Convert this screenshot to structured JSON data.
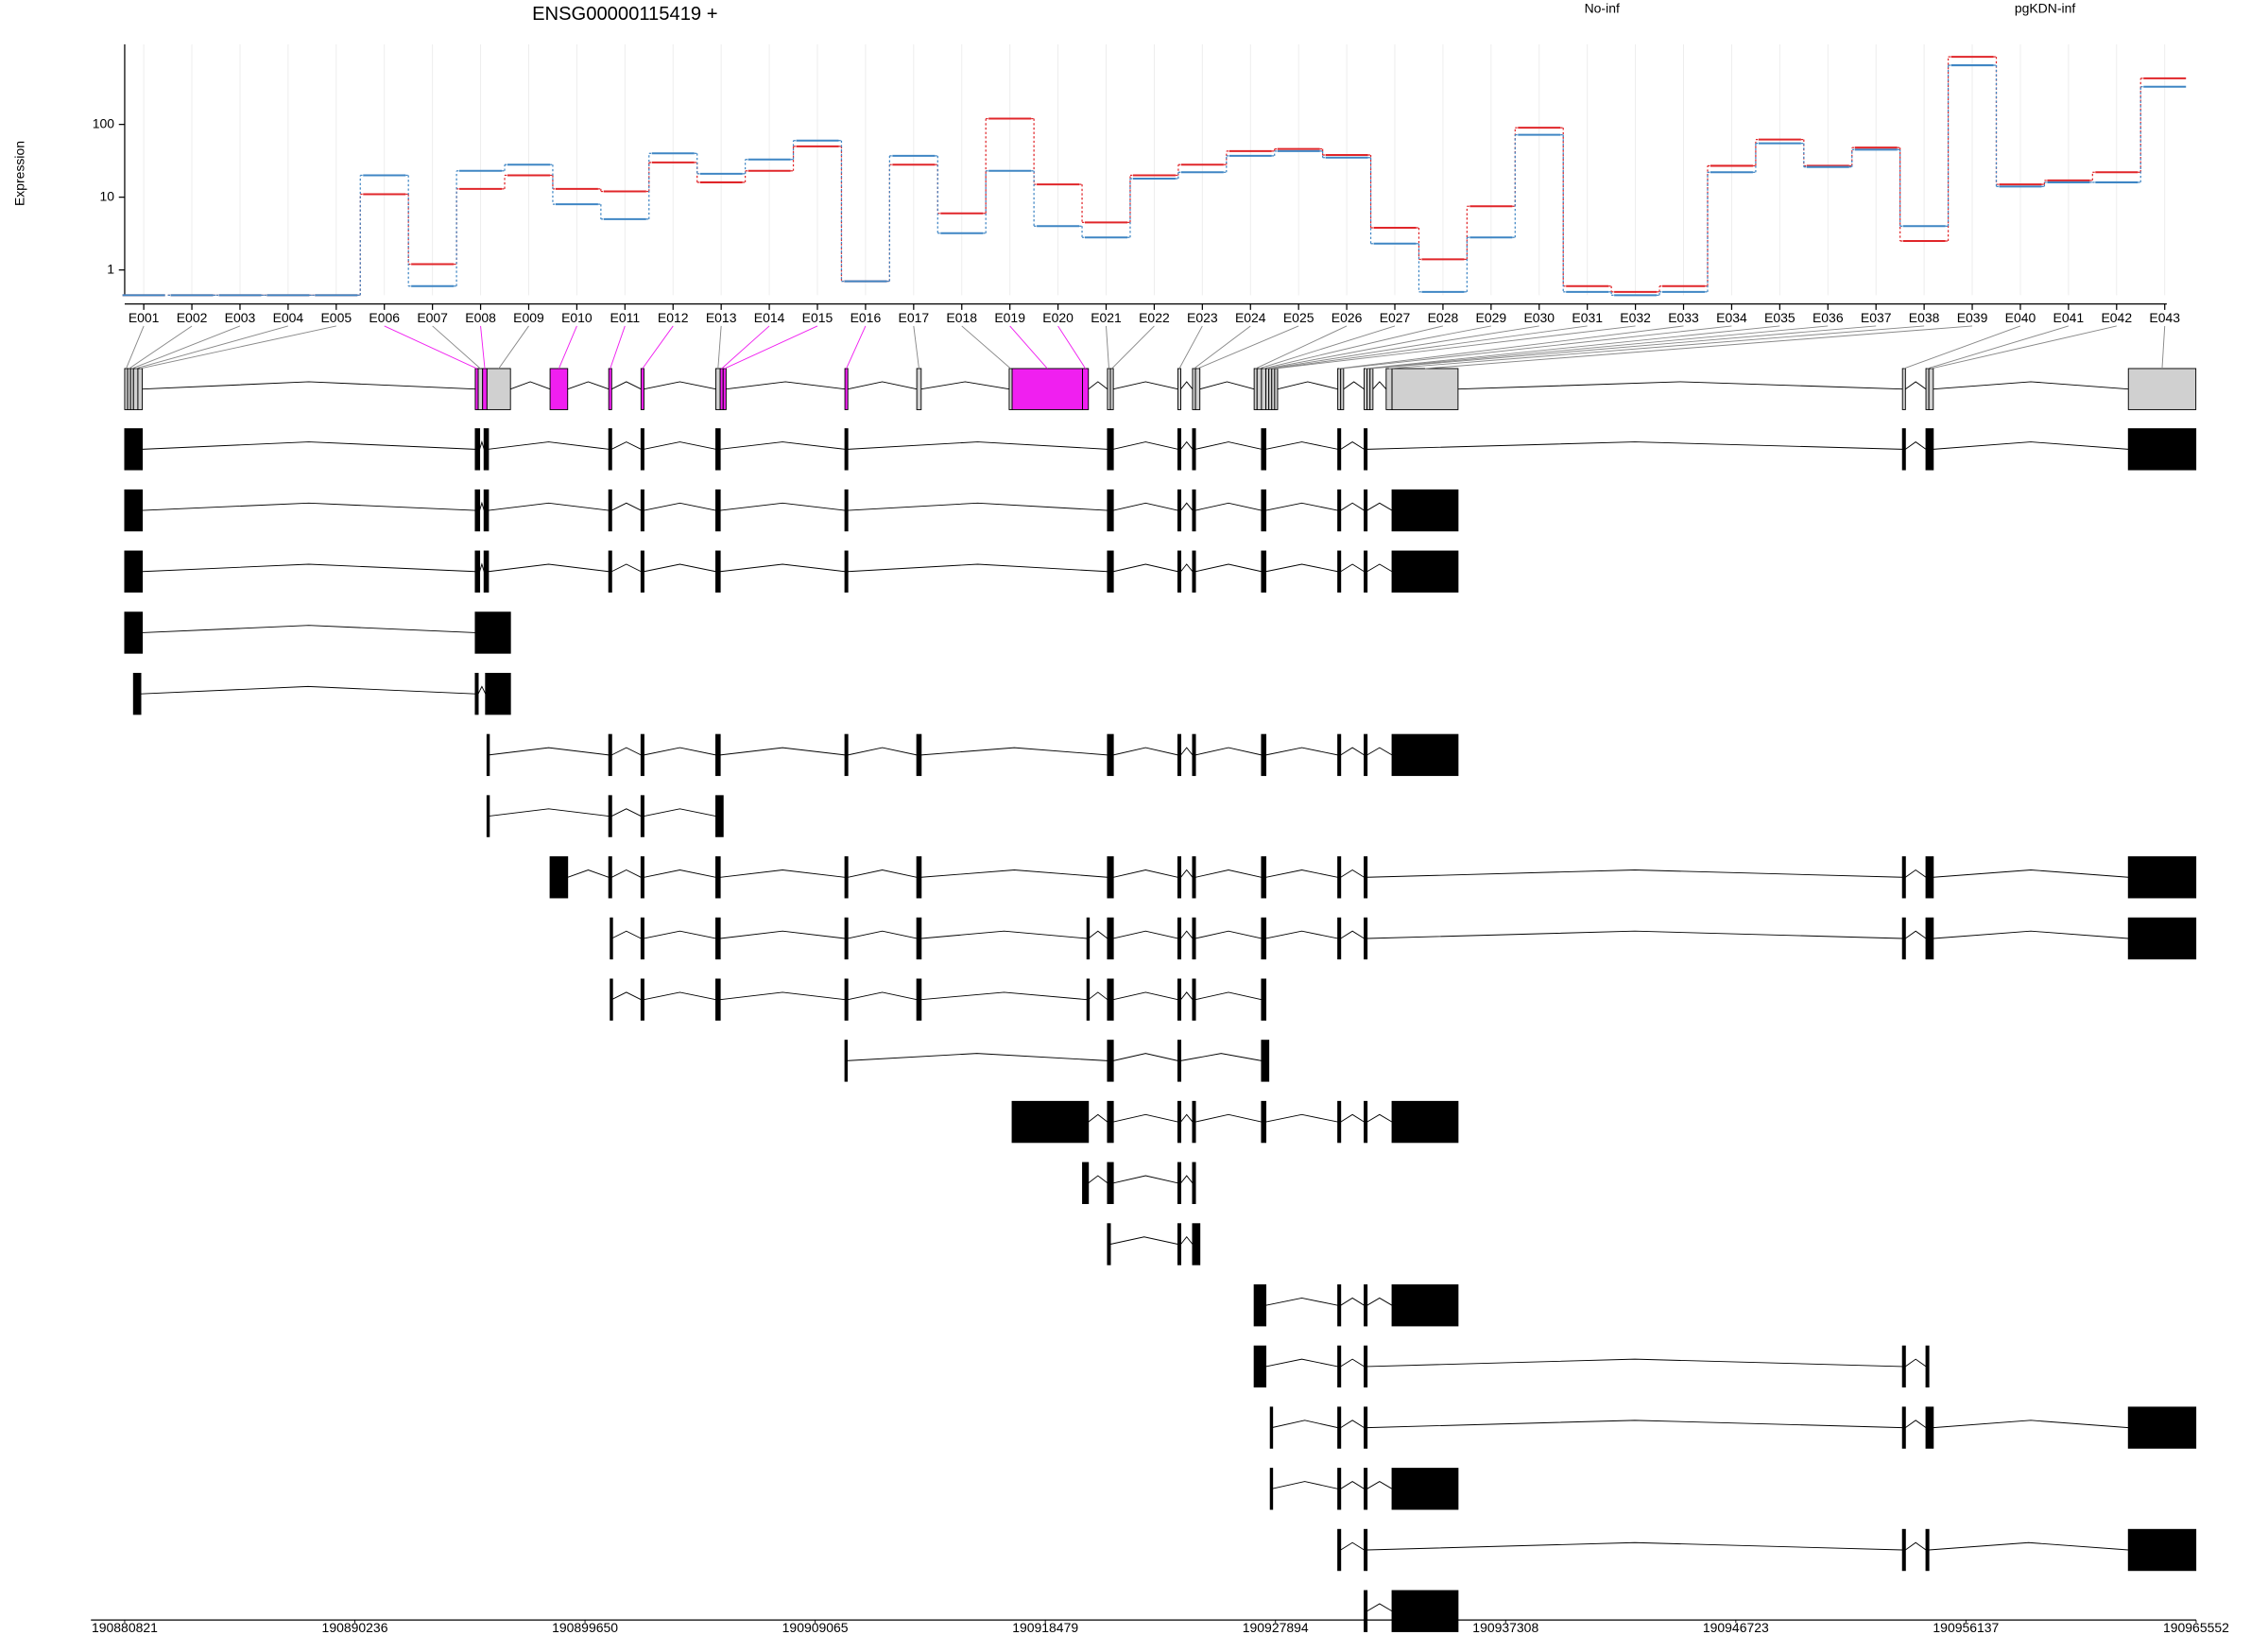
{
  "chart_data": [
    {
      "type": "step-line",
      "title": "ENSG00000115419 +",
      "y_label": "Expression",
      "y_log": true,
      "grid": true,
      "categories": [
        "E001",
        "E002",
        "E003",
        "E004",
        "E005",
        "E006",
        "E007",
        "E008",
        "E009",
        "E010",
        "E011",
        "E012",
        "E013",
        "E014",
        "E015",
        "E016",
        "E017",
        "E018",
        "E019",
        "E020",
        "E021",
        "E022",
        "E023",
        "E024",
        "E025",
        "E026",
        "E027",
        "E028",
        "E029",
        "E030",
        "E031",
        "E032",
        "E033",
        "E034",
        "E035",
        "E036",
        "E037",
        "E038",
        "E039",
        "E040",
        "E041",
        "E042",
        "E043"
      ],
      "series": [
        {
          "name": "No-inf",
          "color": "#e0262a",
          "values": [
            0.45,
            0.45,
            0.45,
            0.45,
            0.45,
            11,
            1.2,
            13,
            20,
            13,
            12,
            30,
            16,
            23,
            50,
            0.7,
            28,
            6,
            120,
            15,
            4.5,
            20,
            28,
            43,
            46,
            38,
            3.8,
            1.4,
            7.5,
            90,
            0.6,
            0.5,
            0.6,
            27,
            62,
            27,
            48,
            2.5,
            850,
            15,
            17,
            22,
            430
          ]
        },
        {
          "name": "pgKDN-inf",
          "color": "#3f86c4",
          "values": [
            0.45,
            0.45,
            0.45,
            0.45,
            0.45,
            20,
            0.6,
            23,
            28,
            8,
            5,
            40,
            21,
            33,
            60,
            0.7,
            37,
            3.2,
            23,
            4,
            2.8,
            18,
            22,
            37,
            43,
            35,
            2.3,
            0.5,
            2.8,
            72,
            0.5,
            0.45,
            0.5,
            22,
            55,
            26,
            45,
            4,
            650,
            14,
            16,
            16,
            330
          ]
        }
      ],
      "ylim": [
        0.45,
        1000
      ],
      "yticks": [
        1,
        10,
        100
      ]
    },
    {
      "type": "gene-model",
      "exon_bins": [
        [
          190880821,
          190880941
        ],
        [
          190880941,
          190881061
        ],
        [
          190881061,
          190881181
        ],
        [
          190881181,
          190881361
        ],
        [
          190881361,
          190881541
        ],
        [
          190895161,
          190895281
        ],
        [
          190895281,
          190895461
        ],
        [
          190895461,
          190895641
        ],
        [
          190895641,
          190896601
        ],
        [
          190898221,
          190898941
        ],
        [
          190900621,
          190900741
        ],
        [
          190901941,
          190902061
        ],
        [
          190905001,
          190905181
        ],
        [
          190905181,
          190905301
        ],
        [
          190905301,
          190905421
        ],
        [
          190910281,
          190910401
        ],
        [
          190913221,
          190913401
        ],
        [
          190917001,
          190917121
        ],
        [
          190917121,
          190920001
        ],
        [
          190920001,
          190920241
        ],
        [
          190921021,
          190921141
        ],
        [
          190921141,
          190921261
        ],
        [
          190923901,
          190924021
        ],
        [
          190924501,
          190924621
        ],
        [
          190924621,
          190924801
        ],
        [
          190927021,
          190927141
        ],
        [
          190927141,
          190927321
        ],
        [
          190927321,
          190927501
        ],
        [
          190927501,
          190927621
        ],
        [
          190927621,
          190927741
        ],
        [
          190927741,
          190927861
        ],
        [
          190927861,
          190927981
        ],
        [
          190930441,
          190930561
        ],
        [
          190930561,
          190930681
        ],
        [
          190931521,
          190931641
        ],
        [
          190931641,
          190931761
        ],
        [
          190931761,
          190931881
        ],
        [
          190932421,
          190932661
        ],
        [
          190932661,
          190935361
        ],
        [
          190953541,
          190953661
        ],
        [
          190954501,
          190954621
        ],
        [
          190954621,
          190954801
        ],
        [
          190962781,
          190965541
        ]
      ],
      "significant": [
        false,
        false,
        false,
        false,
        false,
        true,
        false,
        true,
        false,
        true,
        true,
        true,
        false,
        true,
        true,
        true,
        false,
        false,
        true,
        true,
        false,
        false,
        false,
        false,
        false,
        false,
        false,
        false,
        false,
        false,
        false,
        false,
        false,
        false,
        false,
        false,
        false,
        false,
        false,
        false,
        false,
        false,
        false
      ],
      "significant_color": "#f01ff0",
      "bin_color": "#d0d0d0",
      "transcript_color": "#000000",
      "transcripts": [
        [
          [
            190880821,
            190881541
          ],
          [
            190895161,
            190895341
          ],
          [
            190895521,
            190895701
          ],
          [
            190900621,
            190900741
          ],
          [
            190901941,
            190902061
          ],
          [
            190905001,
            190905181
          ],
          [
            190910281,
            190910401
          ],
          [
            190921021,
            190921261
          ],
          [
            190923901,
            190924021
          ],
          [
            190924501,
            190924621
          ],
          [
            190927321,
            190927501
          ],
          [
            190930441,
            190930561
          ],
          [
            190931521,
            190931641
          ],
          [
            190953541,
            190953661
          ],
          [
            190954501,
            190954801
          ],
          [
            190962781,
            190965541
          ]
        ],
        [
          [
            190880821,
            190881541
          ],
          [
            190895161,
            190895341
          ],
          [
            190895521,
            190895701
          ],
          [
            190900621,
            190900741
          ],
          [
            190901941,
            190902061
          ],
          [
            190905001,
            190905181
          ],
          [
            190910281,
            190910401
          ],
          [
            190921021,
            190921261
          ],
          [
            190923901,
            190924021
          ],
          [
            190924501,
            190924621
          ],
          [
            190927321,
            190927501
          ],
          [
            190930441,
            190930561
          ],
          [
            190931521,
            190931641
          ],
          [
            190932661,
            190935361
          ]
        ],
        [
          [
            190880821,
            190881541
          ],
          [
            190895161,
            190895341
          ],
          [
            190895521,
            190895701
          ],
          [
            190900621,
            190900741
          ],
          [
            190901941,
            190902061
          ],
          [
            190905001,
            190905181
          ],
          [
            190910281,
            190910401
          ],
          [
            190921021,
            190921261
          ],
          [
            190923901,
            190924021
          ],
          [
            190924501,
            190924621
          ],
          [
            190927321,
            190927501
          ],
          [
            190930441,
            190930561
          ],
          [
            190931521,
            190931641
          ],
          [
            190932661,
            190935361
          ]
        ],
        [
          [
            190880821,
            190881541
          ],
          [
            190895161,
            190896601
          ]
        ],
        [
          [
            190881181,
            190881481
          ],
          [
            190895161,
            190895281
          ],
          [
            190895581,
            190896601
          ]
        ],
        [
          [
            190895641,
            190895701
          ],
          [
            190900621,
            190900741
          ],
          [
            190901941,
            190902061
          ],
          [
            190905001,
            190905181
          ],
          [
            190910281,
            190910401
          ],
          [
            190913221,
            190913401
          ],
          [
            190921021,
            190921261
          ],
          [
            190923901,
            190924021
          ],
          [
            190924501,
            190924621
          ],
          [
            190927321,
            190927501
          ],
          [
            190930441,
            190930561
          ],
          [
            190931521,
            190931641
          ],
          [
            190932661,
            190935361
          ]
        ],
        [
          [
            190895641,
            190895701
          ],
          [
            190900621,
            190900741
          ],
          [
            190901941,
            190902061
          ],
          [
            190905001,
            190905301
          ]
        ],
        [
          [
            190898221,
            190898941
          ],
          [
            190900621,
            190900741
          ],
          [
            190901941,
            190902061
          ],
          [
            190905001,
            190905181
          ],
          [
            190910281,
            190910401
          ],
          [
            190913221,
            190913401
          ],
          [
            190921021,
            190921261
          ],
          [
            190923901,
            190924021
          ],
          [
            190924501,
            190924621
          ],
          [
            190927321,
            190927501
          ],
          [
            190930441,
            190930561
          ],
          [
            190931521,
            190931641
          ],
          [
            190953541,
            190953661
          ],
          [
            190954501,
            190954801
          ],
          [
            190962781,
            190965541
          ]
        ],
        [
          [
            190900681,
            190900741
          ],
          [
            190901941,
            190902061
          ],
          [
            190905001,
            190905181
          ],
          [
            190910281,
            190910401
          ],
          [
            190913221,
            190913401
          ],
          [
            190920181,
            190920241
          ],
          [
            190921021,
            190921261
          ],
          [
            190923901,
            190924021
          ],
          [
            190924501,
            190924621
          ],
          [
            190927321,
            190927501
          ],
          [
            190930441,
            190930561
          ],
          [
            190931521,
            190931641
          ],
          [
            190953541,
            190953661
          ],
          [
            190954501,
            190954801
          ],
          [
            190962781,
            190965541
          ]
        ],
        [
          [
            190900681,
            190900741
          ],
          [
            190901941,
            190902061
          ],
          [
            190905001,
            190905181
          ],
          [
            190910281,
            190910401
          ],
          [
            190913221,
            190913401
          ],
          [
            190920181,
            190920241
          ],
          [
            190921021,
            190921261
          ],
          [
            190923901,
            190924021
          ],
          [
            190924501,
            190924621
          ],
          [
            190927321,
            190927501
          ]
        ],
        [
          [
            190910281,
            190910341
          ],
          [
            190921021,
            190921261
          ],
          [
            190923901,
            190924021
          ],
          [
            190927321,
            190927621
          ]
        ],
        [
          [
            190917121,
            190920241
          ],
          [
            190921021,
            190921261
          ],
          [
            190923901,
            190924021
          ],
          [
            190924501,
            190924621
          ],
          [
            190927321,
            190927501
          ],
          [
            190930441,
            190930561
          ],
          [
            190931521,
            190931641
          ],
          [
            190932661,
            190935361
          ]
        ],
        [
          [
            190920001,
            190920241
          ],
          [
            190921021,
            190921261
          ],
          [
            190923901,
            190924021
          ],
          [
            190924501,
            190924621
          ]
        ],
        [
          [
            190921021,
            190921141
          ],
          [
            190923901,
            190924021
          ],
          [
            190924501,
            190924801
          ]
        ],
        [
          [
            190927021,
            190927501
          ],
          [
            190930441,
            190930561
          ],
          [
            190931521,
            190931641
          ],
          [
            190932661,
            190935361
          ]
        ],
        [
          [
            190927021,
            190927501
          ],
          [
            190930441,
            190930561
          ],
          [
            190931521,
            190931641
          ],
          [
            190953541,
            190953661
          ],
          [
            190954501,
            190954621
          ]
        ],
        [
          [
            190927681,
            190927741
          ],
          [
            190930441,
            190930561
          ],
          [
            190931521,
            190931641
          ],
          [
            190953541,
            190953661
          ],
          [
            190954501,
            190954801
          ],
          [
            190962781,
            190965541
          ]
        ],
        [
          [
            190927681,
            190927741
          ],
          [
            190930441,
            190930561
          ],
          [
            190931521,
            190931641
          ],
          [
            190932661,
            190935361
          ]
        ],
        [
          [
            190930441,
            190930561
          ],
          [
            190931521,
            190931641
          ],
          [
            190953541,
            190953661
          ],
          [
            190954501,
            190954621
          ],
          [
            190962781,
            190965541
          ]
        ],
        [
          [
            190931521,
            190931641
          ],
          [
            190932661,
            190935361
          ]
        ]
      ],
      "xlim": [
        190880821,
        190965552
      ],
      "xticks": [
        190880821,
        190890236,
        190899650,
        190909065,
        190918479,
        190927894,
        190937308,
        190946723,
        190956137,
        190965552
      ]
    }
  ]
}
